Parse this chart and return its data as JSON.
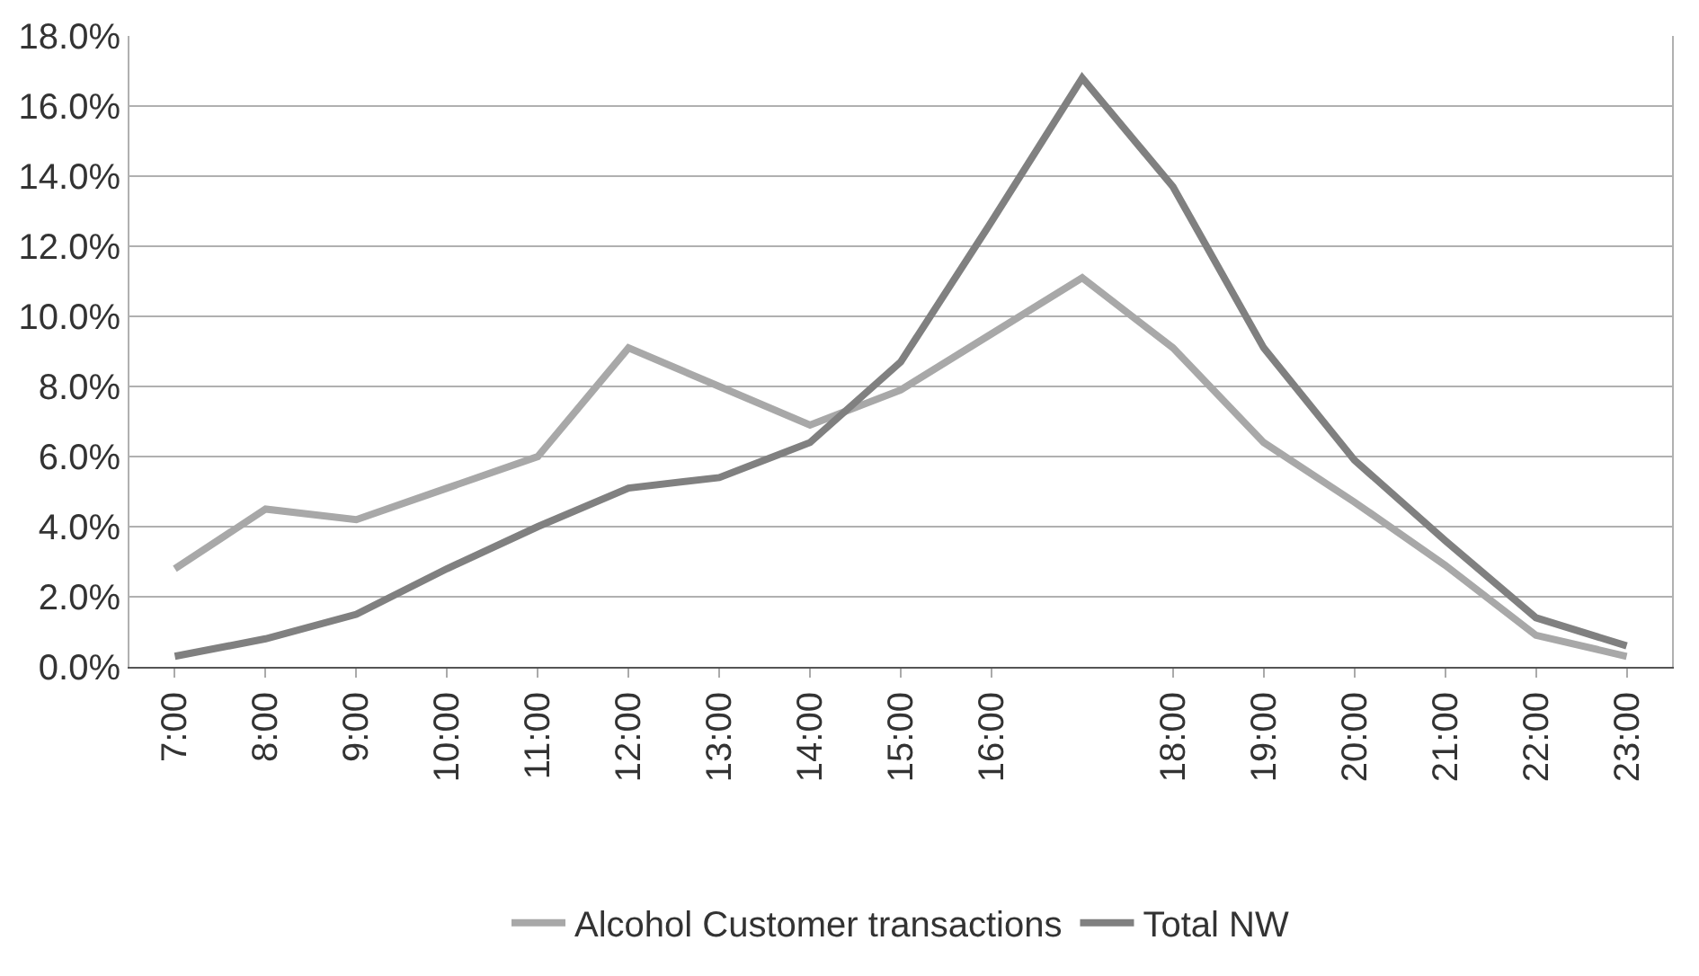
{
  "chart_data": {
    "type": "line",
    "categories": [
      "7:00",
      "8:00",
      "9:00",
      "10:00",
      "11:00",
      "12:00",
      "13:00",
      "14:00",
      "15:00",
      "16:00",
      null,
      "18:00",
      "19:00",
      "20:00",
      "21:00",
      "22:00",
      "23:00"
    ],
    "series": [
      {
        "name": "Alcohol Customer transactions",
        "color": "#a8a8a8",
        "values": [
          2.8,
          4.5,
          4.2,
          5.1,
          6.0,
          9.1,
          8.0,
          6.9,
          7.9,
          9.5,
          11.1,
          9.1,
          6.4,
          4.7,
          2.9,
          0.9,
          0.3
        ]
      },
      {
        "name": "Total NW",
        "color": "#808080",
        "values": [
          0.3,
          0.8,
          1.5,
          2.8,
          4.0,
          5.1,
          5.4,
          6.4,
          8.7,
          12.7,
          16.8,
          13.7,
          9.1,
          5.9,
          3.6,
          1.4,
          0.6
        ]
      }
    ],
    "ylim": [
      0,
      18
    ],
    "yticks": [
      {
        "value": 0,
        "label": "0.0%"
      },
      {
        "value": 2,
        "label": "2.0%"
      },
      {
        "value": 4,
        "label": "4.0%"
      },
      {
        "value": 6,
        "label": "6.0%"
      },
      {
        "value": 8,
        "label": "8.0%"
      },
      {
        "value": 10,
        "label": "10.0%"
      },
      {
        "value": 12,
        "label": "12.0%"
      },
      {
        "value": 14,
        "label": "14.0%"
      },
      {
        "value": 16,
        "label": "16.0%"
      },
      {
        "value": 18,
        "label": "18.0%"
      }
    ],
    "grid": "y",
    "legend": "bottom",
    "marker": "none",
    "line_style": "solid"
  }
}
